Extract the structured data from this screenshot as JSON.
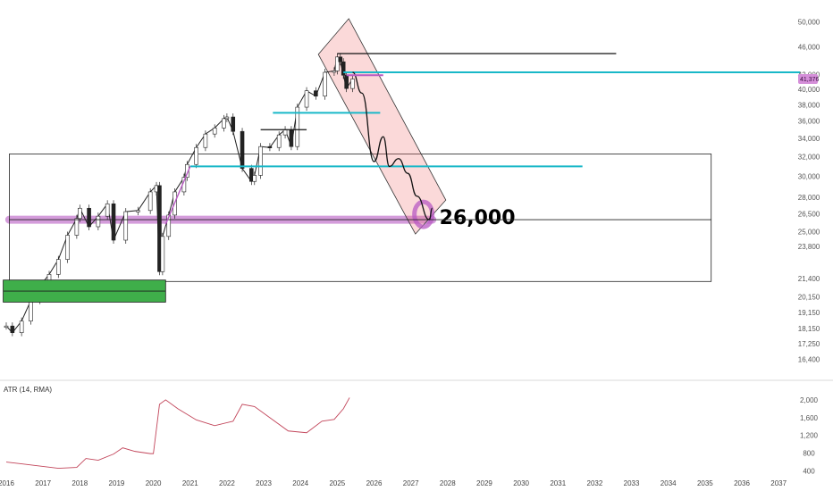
{
  "chart_data": [
    {
      "type": "line",
      "panel": "price",
      "y_scale": "log",
      "ylim": [
        15800,
        52000
      ],
      "xlim": [
        "2016-01",
        "2037-09"
      ],
      "y_ticks": [
        "50,000",
        "46,000",
        "42,000",
        "40,000",
        "38,000",
        "36,000",
        "34,000",
        "32,000",
        "30,000",
        "28,000",
        "26,500",
        "25,000",
        "23,800",
        "21,400",
        "20,150",
        "19,150",
        "18,150",
        "17,250",
        "16,400"
      ],
      "x_ticks": [
        "2016",
        "2017",
        "2018",
        "2019",
        "2020",
        "2021",
        "2022",
        "2023",
        "2024",
        "2025",
        "2026",
        "2027",
        "2028",
        "2029",
        "2030",
        "2031",
        "2032",
        "2033",
        "2034",
        "2035",
        "2036",
        "2037"
      ],
      "last_price_label": "41,376",
      "last_price": 41376,
      "series": [
        {
          "values_by_date": [
            [
              "2016-01",
              18300
            ],
            [
              "2016-03",
              17900
            ],
            [
              "2016-06",
              18600
            ],
            [
              "2016-09",
              19900
            ],
            [
              "2016-12",
              20900
            ],
            [
              "2017-03",
              21700
            ],
            [
              "2017-06",
              22800
            ],
            [
              "2017-09",
              24700
            ],
            [
              "2017-12",
              26100
            ],
            [
              "2018-01",
              27000
            ],
            [
              "2018-04",
              25400
            ],
            [
              "2018-07",
              26300
            ],
            [
              "2018-10",
              27400
            ],
            [
              "2018-12",
              24300
            ],
            [
              "2019-04",
              26700
            ],
            [
              "2019-08",
              26800
            ],
            [
              "2019-12",
              28500
            ],
            [
              "2020-02",
              29100
            ],
            [
              "2020-03",
              21900
            ],
            [
              "2020-04",
              24600
            ],
            [
              "2020-06",
              26400
            ],
            [
              "2020-08",
              28500
            ],
            [
              "2020-11",
              29900
            ],
            [
              "2020-12",
              31200
            ],
            [
              "2021-03",
              33000
            ],
            [
              "2021-06",
              34500
            ],
            [
              "2021-09",
              35200
            ],
            [
              "2021-12",
              36300
            ],
            [
              "2022-01",
              36500
            ],
            [
              "2022-03",
              34800
            ],
            [
              "2022-06",
              30800
            ],
            [
              "2022-09",
              29500
            ],
            [
              "2022-10",
              30100
            ],
            [
              "2022-12",
              33100
            ],
            [
              "2023-03",
              33000
            ],
            [
              "2023-06",
              34400
            ],
            [
              "2023-08",
              35000
            ],
            [
              "2023-10",
              33100
            ],
            [
              "2023-12",
              37700
            ],
            [
              "2024-03",
              39800
            ],
            [
              "2024-06",
              39100
            ],
            [
              "2024-09",
              42300
            ],
            [
              "2024-12",
              42500
            ],
            [
              "2025-01",
              44500
            ],
            [
              "2025-02",
              43800
            ],
            [
              "2025-03",
              41900
            ],
            [
              "2025-04",
              40100
            ],
            [
              "2025-06",
              41376
            ]
          ]
        }
      ],
      "annotations": [
        {
          "type": "text",
          "text": "26,000",
          "at": [
            "2027-08",
            26000
          ]
        },
        {
          "type": "hline",
          "y": 26000,
          "from": "2016-02",
          "to": "2035-03"
        },
        {
          "type": "hline",
          "y": 31000,
          "from": "2021-01",
          "to": "2031-09"
        },
        {
          "type": "hline",
          "y": 37000,
          "from": "2023-04",
          "to": "2026-03"
        },
        {
          "type": "hline",
          "y": 35000,
          "from": "2022-12",
          "to": "2024-03"
        },
        {
          "type": "hline",
          "y": 45000,
          "from": "2025-01",
          "to": "2032-08"
        },
        {
          "type": "hline",
          "y": 42300,
          "from": "2025-03",
          "to": "2037-08"
        },
        {
          "type": "rect",
          "from": "2016-02",
          "to": "2035-03",
          "ymin": 21200,
          "ymax": 32300
        },
        {
          "type": "rect",
          "from": "2015-12",
          "to": "2020-05",
          "ymin": 19800,
          "ymax": 21300
        },
        {
          "type": "channel",
          "from": "2024-08",
          "to": "2027-06",
          "top_start": 46500,
          "bottom_end": 24800
        },
        {
          "type": "projection",
          "points": [
            [
              "2025-06",
              42300
            ],
            [
              "2025-09",
              39500
            ],
            [
              "2026-01",
              31500
            ],
            [
              "2026-04",
              34200
            ],
            [
              "2026-06",
              31000
            ],
            [
              "2026-09",
              31800
            ],
            [
              "2026-12",
              30300
            ],
            [
              "2027-03",
              28100
            ],
            [
              "2027-07",
              26000
            ],
            [
              "2027-08",
              27000
            ]
          ]
        }
      ]
    },
    {
      "type": "line",
      "panel": "indicator",
      "title": "ATR (14, RMA)",
      "ylim": [
        350,
        2200
      ],
      "y_ticks": [
        "2,000",
        "1,600",
        "1,200",
        "800",
        "400"
      ],
      "series": [
        {
          "values_by_date": [
            [
              "2016-01",
              600
            ],
            [
              "2016-06",
              560
            ],
            [
              "2016-12",
              510
            ],
            [
              "2017-06",
              460
            ],
            [
              "2017-12",
              480
            ],
            [
              "2018-03",
              680
            ],
            [
              "2018-07",
              640
            ],
            [
              "2018-12",
              780
            ],
            [
              "2019-03",
              920
            ],
            [
              "2019-07",
              840
            ],
            [
              "2019-12",
              790
            ],
            [
              "2020-01",
              790
            ],
            [
              "2020-03",
              1900
            ],
            [
              "2020-05",
              2000
            ],
            [
              "2020-09",
              1800
            ],
            [
              "2021-03",
              1550
            ],
            [
              "2021-09",
              1420
            ],
            [
              "2022-03",
              1520
            ],
            [
              "2022-06",
              1900
            ],
            [
              "2022-10",
              1850
            ],
            [
              "2023-03",
              1600
            ],
            [
              "2023-09",
              1300
            ],
            [
              "2023-12",
              1280
            ],
            [
              "2024-03",
              1260
            ],
            [
              "2024-08",
              1520
            ],
            [
              "2024-12",
              1560
            ],
            [
              "2025-03",
              1800
            ],
            [
              "2025-05",
              2050
            ]
          ]
        }
      ]
    }
  ]
}
